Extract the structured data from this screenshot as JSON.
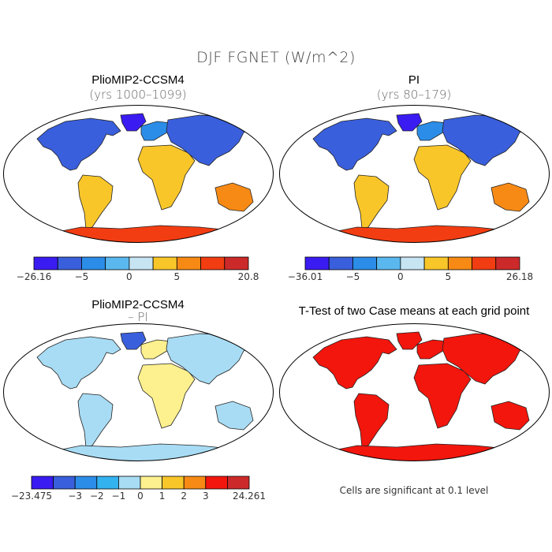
{
  "figure": {
    "title": "DJF FGNET (W/m^2)"
  },
  "panels": [
    {
      "title": "PlioMIP2-CCSM4",
      "subtitle": "(yrs 1000–1099)"
    },
    {
      "title": "PI",
      "subtitle": "(yrs 80–179)"
    },
    {
      "title": "PlioMIP2-CCSM4",
      "subtitle": "– PI"
    },
    {
      "title": "T-Test of two Case means at each grid point",
      "subtitle": ""
    }
  ],
  "colorbars": [
    {
      "colors": [
        "#3a1cf2",
        "#3a5fdc",
        "#2b8de8",
        "#5ab8ee",
        "#c6e4f2",
        "#f9c62a",
        "#f78a15",
        "#f23d12",
        "#cc2a2a"
      ],
      "labels": [
        "−26.16",
        "−5",
        "0",
        "5",
        "20.8"
      ],
      "label_positions": [
        0,
        2,
        4,
        6,
        9
      ]
    },
    {
      "colors": [
        "#3a1cf2",
        "#3a5fdc",
        "#2b8de8",
        "#5ab8ee",
        "#c6e4f2",
        "#f9c62a",
        "#f78a15",
        "#f23d12",
        "#cc2a2a"
      ],
      "labels": [
        "−36.01",
        "−5",
        "0",
        "5",
        "26.18"
      ],
      "label_positions": [
        0,
        2,
        4,
        6,
        9
      ]
    },
    {
      "colors": [
        "#3a1cf2",
        "#3a5fdc",
        "#2b8de8",
        "#33b2f0",
        "#a8dcf4",
        "#fdf08e",
        "#f9c62a",
        "#f78a15",
        "#f2160d",
        "#cc2a2a"
      ],
      "labels": [
        "−23.475",
        "−3",
        "−2",
        "−1",
        "0",
        "1",
        "2",
        "3",
        "24.261"
      ],
      "label_positions": [
        0,
        2,
        3,
        4,
        5,
        6,
        7,
        8,
        10
      ]
    }
  ],
  "note": "Cells are significant at 0.1 level"
}
